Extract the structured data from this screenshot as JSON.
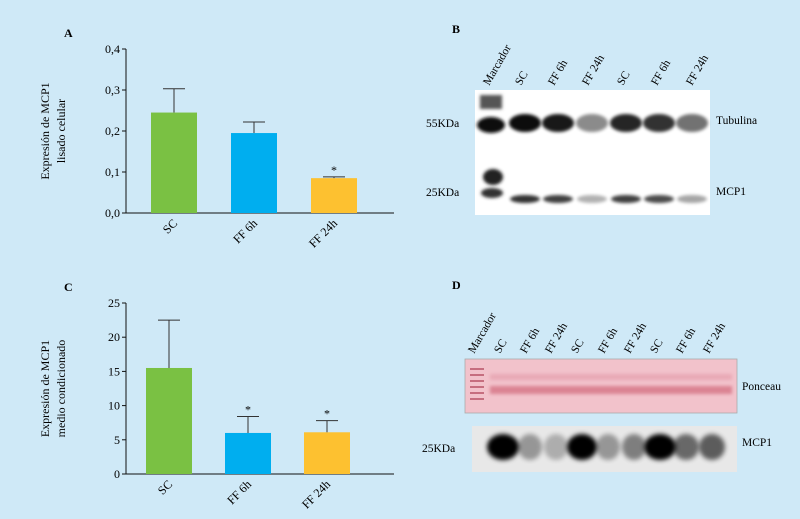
{
  "panels": {
    "A": "A",
    "B": "B",
    "C": "C",
    "D": "D"
  },
  "chart_data": [
    {
      "panel": "A",
      "type": "bar",
      "categories": [
        "SC",
        "FF 6h",
        "FF 24h"
      ],
      "values": [
        0.245,
        0.195,
        0.085
      ],
      "errors": [
        0.058,
        0.027,
        0.003
      ],
      "significance": [
        "",
        "",
        "*"
      ],
      "colors": [
        "#7ac143",
        "#00aeef",
        "#fdc130"
      ],
      "ylabel_line1": "Expresión de MCP1",
      "ylabel_line2": "lisado celular",
      "yticks": [
        "0,0",
        "0,1",
        "0,2",
        "0,3",
        "0,4"
      ],
      "ylim": [
        0,
        0.4
      ]
    },
    {
      "panel": "C",
      "type": "bar",
      "categories": [
        "SC",
        "FF 6h",
        "FF 24h"
      ],
      "values": [
        15.5,
        6.0,
        6.1
      ],
      "errors": [
        7.0,
        2.4,
        1.7
      ],
      "significance": [
        "",
        "*",
        "*"
      ],
      "colors": [
        "#7ac143",
        "#00aeef",
        "#fdc130"
      ],
      "ylabel_line1": "Expresión de MCP1",
      "ylabel_line2": "medio condicionado",
      "yticks": [
        "0",
        "5",
        "10",
        "15",
        "20",
        "25"
      ],
      "ylim": [
        0,
        25
      ]
    }
  ],
  "blot_b": {
    "lanes": [
      "Marcador",
      "SC",
      "FF 6h",
      "FF 24h",
      "SC",
      "FF 6h",
      "FF 24h"
    ],
    "mw_top": "55KDa",
    "mw_bottom": "25KDa",
    "label_top": "Tubulina",
    "label_bottom": "MCP1"
  },
  "blot_d": {
    "lanes": [
      "Marcador",
      "SC",
      "FF 6h",
      "FF 24h",
      "SC",
      "FF 6h",
      "FF 24h",
      "SC",
      "FF 6h",
      "FF 24h"
    ],
    "label_top": "Ponceau",
    "mw_bottom": "25KDa",
    "label_bottom": "MCP1"
  }
}
